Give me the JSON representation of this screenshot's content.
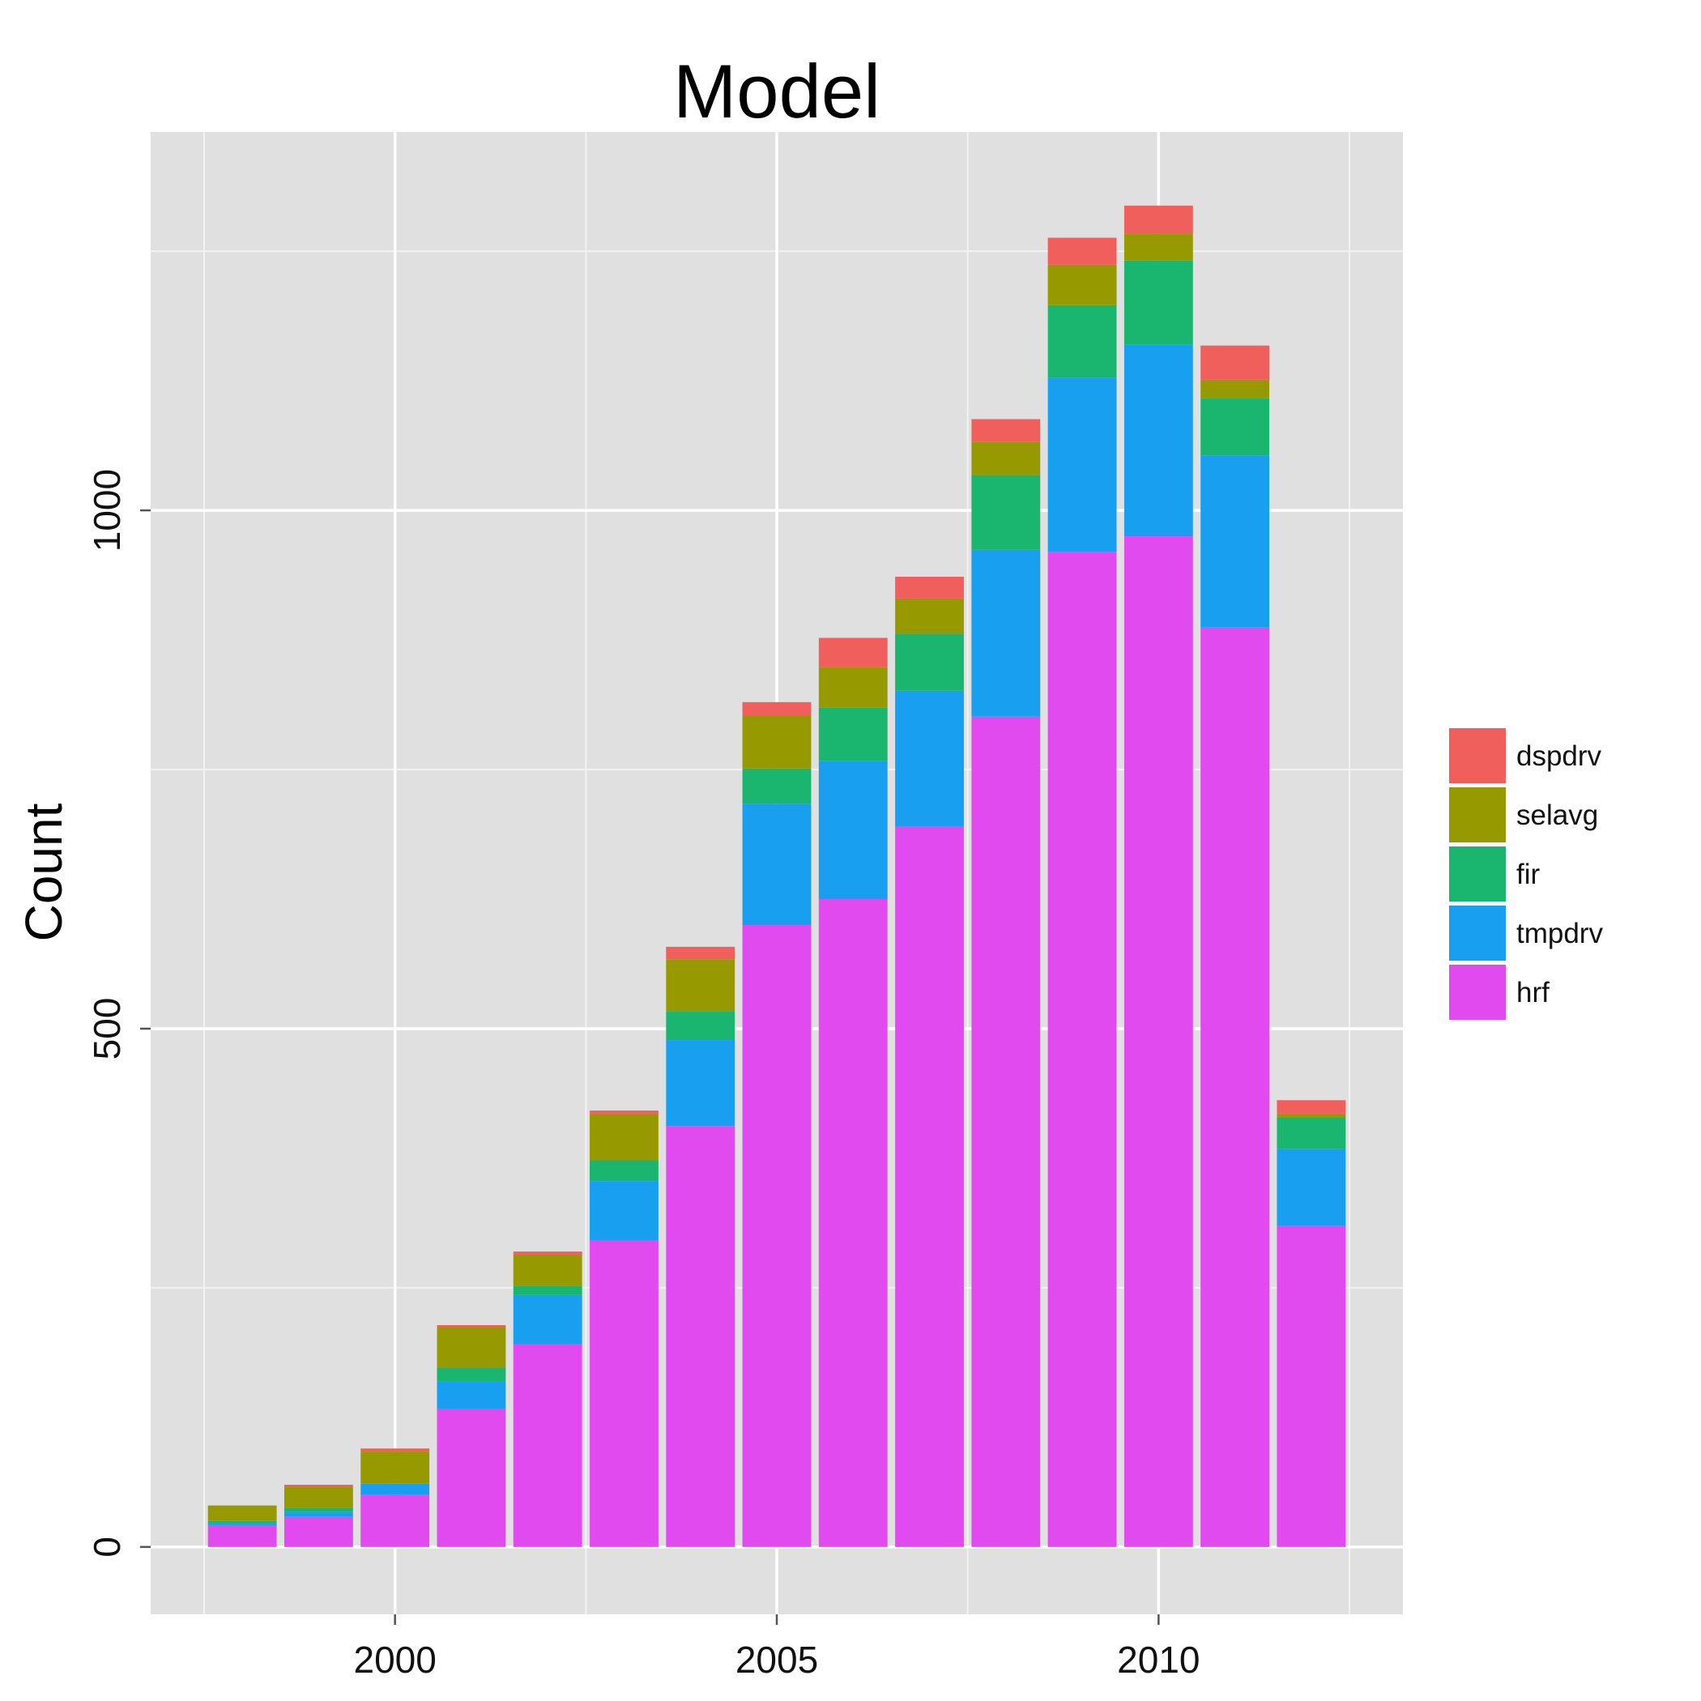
{
  "chart_data": {
    "type": "bar",
    "stacked": true,
    "title": "Model",
    "xlabel": "",
    "ylabel": "Count",
    "categories": [
      1998,
      1999,
      2000,
      2001,
      2002,
      2003,
      2004,
      2005,
      2006,
      2007,
      2008,
      2009,
      2010,
      2011,
      2012
    ],
    "x_ticks": [
      2000,
      2005,
      2010
    ],
    "y_ticks": [
      0,
      500,
      1000
    ],
    "xlim": [
      1996.8,
      2013.2
    ],
    "ylim": [
      -65,
      1365
    ],
    "grid": true,
    "legend_position": "right",
    "legend_order": [
      "dspdrv",
      "selavg",
      "fir",
      "tmpdrv",
      "hrf"
    ],
    "series": [
      {
        "name": "hrf",
        "color": "#e04aee",
        "values": [
          21,
          29,
          50,
          133,
          196,
          296,
          406,
          600,
          625,
          695,
          801,
          960,
          975,
          887,
          310
        ]
      },
      {
        "name": "tmpdrv",
        "color": "#189ff0",
        "values": [
          2,
          5,
          11,
          27,
          47,
          57,
          83,
          117,
          133,
          131,
          161,
          168,
          185,
          166,
          74
        ]
      },
      {
        "name": "fir",
        "color": "#1ab56e",
        "values": [
          2,
          4,
          0,
          13,
          9,
          20,
          28,
          34,
          52,
          55,
          72,
          70,
          81,
          55,
          30
        ]
      },
      {
        "name": "selavg",
        "color": "#969a00",
        "values": [
          15,
          20,
          31,
          39,
          30,
          45,
          50,
          51,
          39,
          34,
          32,
          39,
          26,
          18,
          4
        ]
      },
      {
        "name": "dspdrv",
        "color": "#f05f5b",
        "values": [
          0,
          2,
          3,
          2,
          3,
          3,
          12,
          13,
          28,
          21,
          22,
          26,
          27,
          33,
          13
        ]
      }
    ]
  }
}
